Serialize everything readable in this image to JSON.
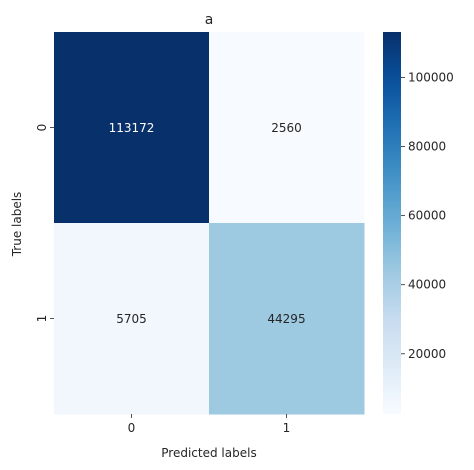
{
  "chart_data": {
    "type": "heatmap",
    "title": "a",
    "xlabel": "Predicted labels",
    "ylabel": "True labels",
    "x_categories": [
      "0",
      "1"
    ],
    "y_categories": [
      "0",
      "1"
    ],
    "values": [
      [
        113172,
        2560
      ],
      [
        5705,
        44295
      ]
    ],
    "cell_labels": [
      [
        "113172",
        "2560"
      ],
      [
        "5705",
        "44295"
      ]
    ],
    "colormap": "Blues",
    "colorbar": {
      "range": [
        2560,
        113172
      ],
      "ticks": [
        20000,
        40000,
        60000,
        80000,
        100000
      ],
      "tick_labels": [
        "20000",
        "40000",
        "60000",
        "80000",
        "100000"
      ]
    },
    "grid": false
  }
}
